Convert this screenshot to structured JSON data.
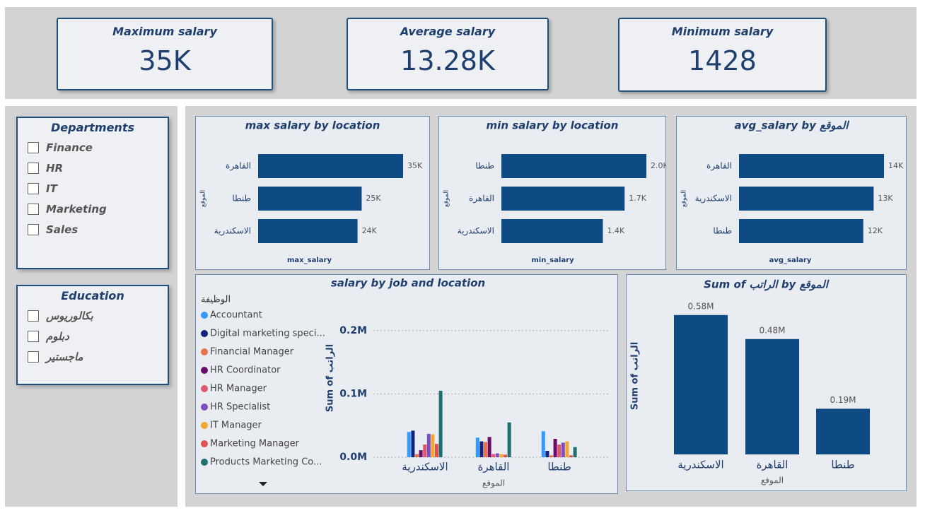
{
  "cards": [
    {
      "title": "Maximum salary",
      "value": "35K"
    },
    {
      "title": "Average salary",
      "value": "13.28K"
    },
    {
      "title": "Minimum salary",
      "value": "1428"
    }
  ],
  "slicers": [
    {
      "title": "Departments",
      "items": [
        "Finance",
        "HR",
        "IT",
        "Marketing",
        "Sales"
      ]
    },
    {
      "title": "Education",
      "items": [
        "بكالوريوس",
        "دبلوم",
        "ماجستير"
      ]
    }
  ],
  "chart_data": [
    {
      "type": "hbar",
      "title": "max salary by location",
      "x_label": "max_salary",
      "y_label": "الموقع",
      "categories": [
        "القاهرة",
        "طنطا",
        "الاسكندرية"
      ],
      "values": [
        35000,
        25000,
        24000
      ],
      "value_labels": [
        "35K",
        "25K",
        "24K"
      ],
      "xlim": [
        0,
        35000
      ],
      "color": "#0e4a84"
    },
    {
      "type": "hbar",
      "title": "min salary by location",
      "x_label": "min_salary",
      "y_label": "الموقع",
      "categories": [
        "طنطا",
        "القاهرة",
        "الاسكندرية"
      ],
      "values": [
        2000,
        1700,
        1400
      ],
      "value_labels": [
        "2.0K",
        "1.7K",
        "1.4K"
      ],
      "xlim": [
        0,
        2000
      ],
      "color": "#0e4a84"
    },
    {
      "type": "hbar",
      "title": "avg_salary by الموقع",
      "x_label": "avg_salary",
      "y_label": "الموقع",
      "categories": [
        "القاهرة",
        "الاسكندرية",
        "طنطا"
      ],
      "values": [
        14000,
        13000,
        12000
      ],
      "value_labels": [
        "14K",
        "13K",
        "12K"
      ],
      "xlim": [
        0,
        14000
      ],
      "color": "#0e4a84"
    },
    {
      "type": "grouped",
      "title": "salary by job and location",
      "legend_title": "الوظيفة",
      "x_label": "الموقع",
      "y_label": "Sum of الراتب",
      "categories": [
        "الاسكندرية",
        "القاهرة",
        "طنطا"
      ],
      "ylim": [
        0,
        250000
      ],
      "yticks": [
        {
          "value": 0,
          "label": "0.0M"
        },
        {
          "value": 100000,
          "label": "0.1M"
        },
        {
          "value": 200000,
          "label": "0.2M"
        }
      ],
      "grid": true,
      "series": [
        {
          "name": "Accountant",
          "color": "#3399ff",
          "values": [
            40000,
            31000,
            41000
          ]
        },
        {
          "name": "Digital marketing speci...",
          "color": "#13217f",
          "values": [
            42000,
            25000,
            10000
          ]
        },
        {
          "name": "Financial Manager",
          "color": "#e8734a",
          "values": [
            5000,
            24000,
            3000
          ]
        },
        {
          "name": "HR Coordinator",
          "color": "#6a0d6a",
          "values": [
            11000,
            32000,
            29000
          ]
        },
        {
          "name": "HR Manager",
          "color": "#e0566e",
          "values": [
            20000,
            5000,
            20000
          ]
        },
        {
          "name": "HR Specialist",
          "color": "#7b4fc0",
          "values": [
            37000,
            6000,
            23000
          ]
        },
        {
          "name": "IT Manager",
          "color": "#f0a830",
          "values": [
            36000,
            5000,
            25000
          ]
        },
        {
          "name": "Marketing Manager",
          "color": "#e05050",
          "values": [
            21000,
            4000,
            3000
          ]
        },
        {
          "name": "Products Marketing Co...",
          "color": "#1f6f6f",
          "values": [
            105000,
            55000,
            16000
          ]
        }
      ]
    },
    {
      "type": "bar",
      "title": "Sum of الراتب by الموقع",
      "x_label": "الموقع",
      "y_label": "Sum of الراتب",
      "categories": [
        "الاسكندرية",
        "القاهرة",
        "طنطا"
      ],
      "values": [
        580000,
        480000,
        190000
      ],
      "value_labels": [
        "0.58M",
        "0.48M",
        "0.19M"
      ],
      "ylim": [
        0,
        650000
      ],
      "color": "#0e4a84"
    }
  ]
}
